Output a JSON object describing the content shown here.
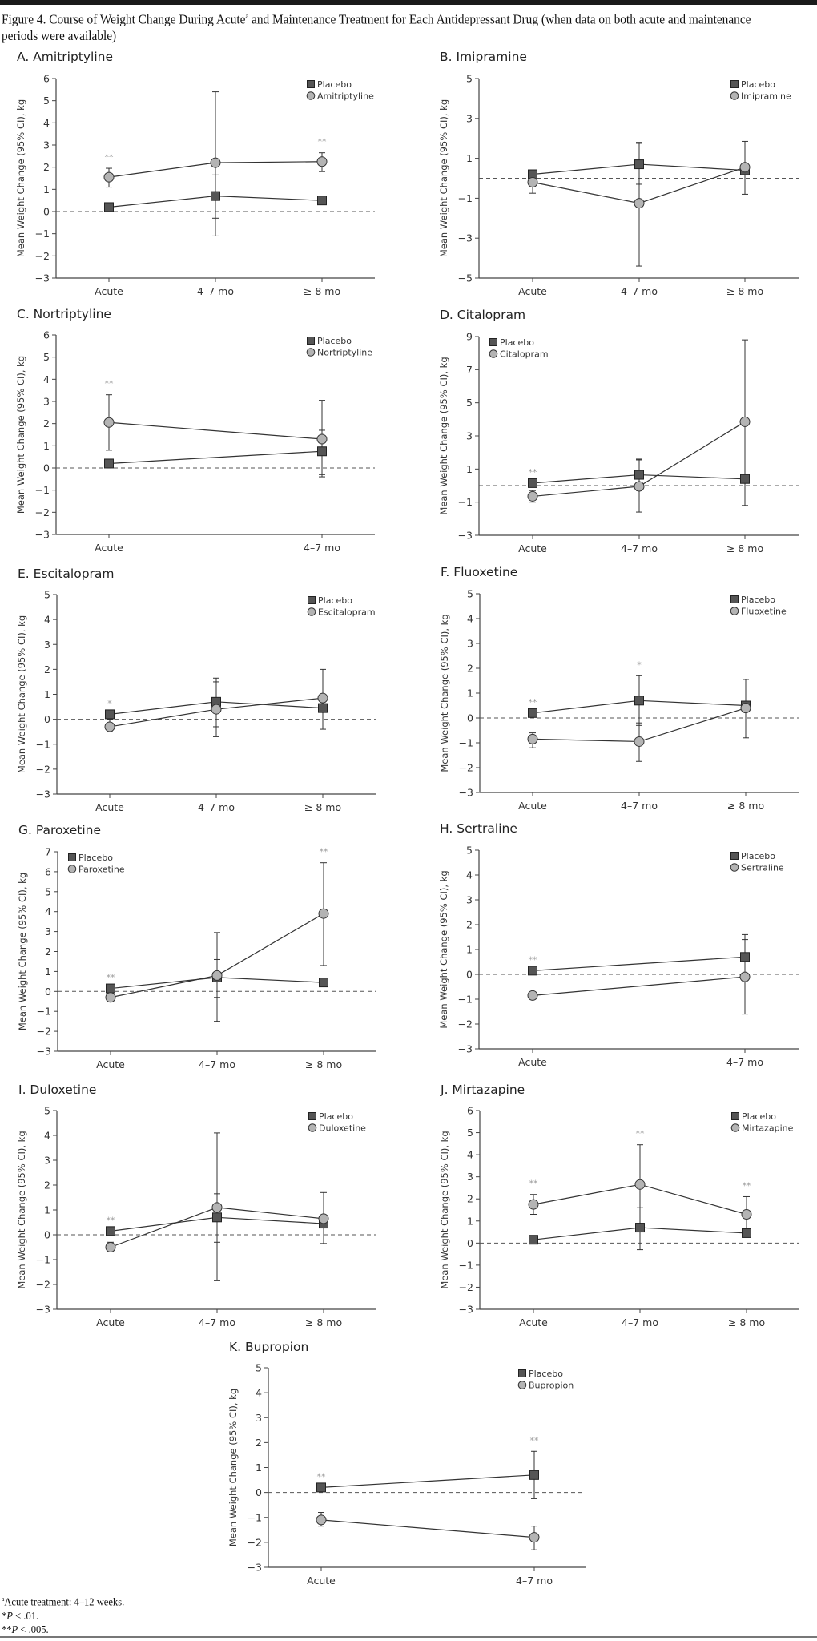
{
  "figure": {
    "title_prefix": "Figure 4. Course of Weight Change During Acute",
    "title_sup": "a",
    "title_suffix": " and Maintenance Treatment for Each Antidepressant Drug (when data on both acute and maintenance periods were available)",
    "footnotes": [
      {
        "sup": "a",
        "text": "Acute treatment: 4–12 weeks."
      },
      {
        "prefix": "*",
        "italic": "P",
        "text": " < .01."
      },
      {
        "prefix": "**",
        "italic": "P",
        "text": " < .005."
      }
    ]
  },
  "colors": {
    "placebo_fill": "#555555",
    "drug_fill": "#b4b4b4",
    "line": "#333333",
    "star": "#9a9a9a",
    "axis": "#444444"
  },
  "chart_data": [
    {
      "type": "line",
      "title": "A. Amitriptyline",
      "ylabel": "Mean Weight Change (95% CI), kg",
      "categories": [
        "Acute",
        "4–7 mo",
        "≥ 8 mo"
      ],
      "ylim": [
        -3,
        6
      ],
      "yticks": [
        6,
        5,
        4,
        3,
        2,
        1,
        0,
        -1,
        -2,
        -3
      ],
      "legend": "top-right",
      "reference_line": 0,
      "series": [
        {
          "name": "Placebo",
          "marker": "square",
          "values": [
            0.2,
            0.7,
            0.5
          ],
          "ci_low": [
            null,
            -0.3,
            null
          ],
          "ci_high": [
            null,
            1.65,
            null
          ]
        },
        {
          "name": "Amitriptyline",
          "marker": "circle",
          "values": [
            1.55,
            2.2,
            2.25
          ],
          "ci_low": [
            1.1,
            -1.1,
            1.8
          ],
          "ci_high": [
            1.95,
            5.4,
            2.65
          ]
        }
      ],
      "annotations": [
        "**",
        "",
        "**"
      ]
    },
    {
      "type": "line",
      "title": "B. Imipramine",
      "ylabel": "Mean Weight Change (95% CI), kg",
      "categories": [
        "Acute",
        "4–7 mo",
        "≥ 8 mo"
      ],
      "ylim": [
        -5,
        5
      ],
      "yticks": [
        5,
        3,
        1,
        -1,
        -3,
        -5
      ],
      "legend": "top-right",
      "reference_line": 0,
      "series": [
        {
          "name": "Placebo",
          "marker": "square",
          "values": [
            0.2,
            0.7,
            0.4
          ],
          "ci_low": [
            null,
            -0.3,
            null
          ],
          "ci_high": [
            null,
            1.75,
            null
          ]
        },
        {
          "name": "Imipramine",
          "marker": "circle",
          "values": [
            -0.2,
            -1.25,
            0.55
          ],
          "ci_low": [
            -0.75,
            -4.4,
            -0.8
          ],
          "ci_high": [
            null,
            1.8,
            1.85
          ]
        }
      ],
      "annotations": [
        "",
        "",
        ""
      ]
    },
    {
      "type": "line",
      "title": "C. Nortriptyline",
      "ylabel": "Mean Weight Change (95% CI), kg",
      "categories": [
        "Acute",
        "4–7 mo"
      ],
      "ylim": [
        -3,
        6
      ],
      "yticks": [
        6,
        5,
        4,
        3,
        2,
        1,
        0,
        -1,
        -2,
        -3
      ],
      "legend": "top-right",
      "reference_line": 0,
      "series": [
        {
          "name": "Placebo",
          "marker": "square",
          "values": [
            0.2,
            0.75
          ],
          "ci_low": [
            null,
            -0.3
          ],
          "ci_high": [
            null,
            1.7
          ]
        },
        {
          "name": "Nortriptyline",
          "marker": "circle",
          "values": [
            2.05,
            1.3
          ],
          "ci_low": [
            0.8,
            -0.4
          ],
          "ci_high": [
            3.3,
            3.05
          ]
        }
      ],
      "annotations": [
        "**",
        ""
      ]
    },
    {
      "type": "line",
      "title": "D. Citalopram",
      "ylabel": "Mean Weight Change (95% CI), kg",
      "categories": [
        "Acute",
        "4–7 mo",
        "≥ 8 mo"
      ],
      "ylim": [
        -3,
        9
      ],
      "yticks": [
        9,
        7,
        5,
        3,
        1,
        -1,
        -3
      ],
      "legend": "top-left",
      "reference_line": 0,
      "series": [
        {
          "name": "Placebo",
          "marker": "square",
          "values": [
            0.15,
            0.65,
            0.4
          ],
          "ci_low": [
            null,
            -0.3,
            null
          ],
          "ci_high": [
            null,
            1.6,
            null
          ]
        },
        {
          "name": "Citalopram",
          "marker": "circle",
          "values": [
            -0.65,
            -0.05,
            3.85
          ],
          "ci_low": [
            -1.0,
            -1.6,
            -1.2
          ],
          "ci_high": [
            -0.3,
            1.55,
            8.8
          ]
        }
      ],
      "annotations": [
        "**",
        "",
        ""
      ]
    },
    {
      "type": "line",
      "title": "E. Escitalopram",
      "ylabel": "Mean Weight Change (95% CI), kg",
      "categories": [
        "Acute",
        "4–7 mo",
        "≥ 8 mo"
      ],
      "ylim": [
        -3,
        5
      ],
      "yticks": [
        5,
        4,
        3,
        2,
        1,
        0,
        -1,
        -2,
        -3
      ],
      "legend": "top-right",
      "reference_line": 0,
      "series": [
        {
          "name": "Placebo",
          "marker": "square",
          "values": [
            0.2,
            0.7,
            0.45
          ],
          "ci_low": [
            null,
            -0.3,
            null
          ],
          "ci_high": [
            null,
            1.65,
            null
          ]
        },
        {
          "name": "Escitalopram",
          "marker": "circle",
          "values": [
            -0.3,
            0.4,
            0.85
          ],
          "ci_low": [
            -0.5,
            -0.7,
            -0.4
          ],
          "ci_high": [
            0.0,
            1.5,
            2.0
          ]
        }
      ],
      "annotations": [
        "*",
        "",
        ""
      ]
    },
    {
      "type": "line",
      "title": "F. Fluoxetine",
      "ylabel": "Mean Weight Change (95% CI), kg",
      "categories": [
        "Acute",
        "4–7 mo",
        "≥ 8 mo"
      ],
      "ylim": [
        -3,
        5
      ],
      "yticks": [
        5,
        4,
        3,
        2,
        1,
        0,
        -1,
        -2,
        -3
      ],
      "legend": "top-right",
      "reference_line": 0,
      "series": [
        {
          "name": "Placebo",
          "marker": "square",
          "values": [
            0.2,
            0.7,
            0.5
          ],
          "ci_low": [
            null,
            -0.3,
            null
          ],
          "ci_high": [
            null,
            1.7,
            null
          ]
        },
        {
          "name": "Fluoxetine",
          "marker": "circle",
          "values": [
            -0.85,
            -0.95,
            0.4
          ],
          "ci_low": [
            -1.2,
            -1.75,
            -0.8
          ],
          "ci_high": [
            -0.6,
            -0.2,
            1.55
          ]
        }
      ],
      "annotations": [
        "**",
        "*",
        ""
      ]
    },
    {
      "type": "line",
      "title": "G. Paroxetine",
      "ylabel": "Mean Weight Change (95% CI), kg",
      "categories": [
        "Acute",
        "4–7 mo",
        "≥ 8 mo"
      ],
      "ylim": [
        -3,
        7
      ],
      "yticks": [
        7,
        6,
        5,
        4,
        3,
        2,
        1,
        0,
        -1,
        -2,
        -3
      ],
      "legend": "top-left",
      "reference_line": 0,
      "series": [
        {
          "name": "Placebo",
          "marker": "square",
          "values": [
            0.15,
            0.7,
            0.45
          ],
          "ci_low": [
            null,
            -0.3,
            null
          ],
          "ci_high": [
            null,
            1.6,
            null
          ]
        },
        {
          "name": "Paroxetine",
          "marker": "circle",
          "values": [
            -0.3,
            0.8,
            3.9
          ],
          "ci_low": [
            null,
            -1.5,
            1.3
          ],
          "ci_high": [
            null,
            2.95,
            6.45
          ]
        }
      ],
      "annotations": [
        "**",
        "",
        "**"
      ]
    },
    {
      "type": "line",
      "title": "H. Sertraline",
      "ylabel": "Mean Weight Change (95% CI), kg",
      "categories": [
        "Acute",
        "4–7 mo"
      ],
      "ylim": [
        -3,
        5
      ],
      "yticks": [
        5,
        4,
        3,
        2,
        1,
        0,
        -1,
        -2,
        -3
      ],
      "legend": "top-right",
      "reference_line": 0,
      "series": [
        {
          "name": "Placebo",
          "marker": "square",
          "values": [
            0.15,
            0.7
          ],
          "ci_low": [
            null,
            null
          ],
          "ci_high": [
            null,
            1.6
          ]
        },
        {
          "name": "Sertraline",
          "marker": "circle",
          "values": [
            -0.85,
            -0.1
          ],
          "ci_low": [
            -1.0,
            -1.6
          ],
          "ci_high": [
            -0.75,
            1.4
          ]
        }
      ],
      "annotations": [
        "**",
        ""
      ]
    },
    {
      "type": "line",
      "title": "I. Duloxetine",
      "ylabel": "Mean Weight Change (95% CI), kg",
      "categories": [
        "Acute",
        "4–7 mo",
        "≥ 8 mo"
      ],
      "ylim": [
        -3,
        5
      ],
      "yticks": [
        5,
        4,
        3,
        2,
        1,
        0,
        -1,
        -2,
        -3
      ],
      "legend": "top-right",
      "reference_line": 0,
      "series": [
        {
          "name": "Placebo",
          "marker": "square",
          "values": [
            0.15,
            0.7,
            0.45
          ],
          "ci_low": [
            null,
            -0.3,
            null
          ],
          "ci_high": [
            null,
            1.65,
            null
          ]
        },
        {
          "name": "Duloxetine",
          "marker": "circle",
          "values": [
            -0.5,
            1.1,
            0.65
          ],
          "ci_low": [
            -0.65,
            -1.85,
            -0.35
          ],
          "ci_high": [
            -0.3,
            4.1,
            1.7
          ]
        }
      ],
      "annotations": [
        "**",
        "",
        ""
      ]
    },
    {
      "type": "line",
      "title": "J. Mirtazapine",
      "ylabel": "Mean Weight Change (95% CI), kg",
      "categories": [
        "Acute",
        "4–7 mo",
        "≥ 8 mo"
      ],
      "ylim": [
        -3,
        6
      ],
      "yticks": [
        6,
        5,
        4,
        3,
        2,
        1,
        0,
        -1,
        -2,
        -3
      ],
      "legend": "top-right",
      "reference_line": 0,
      "series": [
        {
          "name": "Placebo",
          "marker": "square",
          "values": [
            0.15,
            0.7,
            0.45
          ],
          "ci_low": [
            null,
            -0.3,
            null
          ],
          "ci_high": [
            null,
            1.6,
            null
          ]
        },
        {
          "name": "Mirtazapine",
          "marker": "circle",
          "values": [
            1.75,
            2.65,
            1.3
          ],
          "ci_low": [
            1.3,
            0.85,
            0.5
          ],
          "ci_high": [
            2.2,
            4.45,
            2.1
          ]
        }
      ],
      "annotations": [
        "**",
        "**",
        "**"
      ]
    },
    {
      "type": "line",
      "title": "K. Bupropion",
      "ylabel": "Mean Weight Change (95% CI), kg",
      "categories": [
        "Acute",
        "4–7 mo"
      ],
      "ylim": [
        -3,
        5
      ],
      "yticks": [
        5,
        4,
        3,
        2,
        1,
        0,
        -1,
        -2,
        -3
      ],
      "legend": "top-right",
      "reference_line": 0,
      "series": [
        {
          "name": "Placebo",
          "marker": "square",
          "values": [
            0.2,
            0.7
          ],
          "ci_low": [
            null,
            -0.25
          ],
          "ci_high": [
            null,
            1.65
          ]
        },
        {
          "name": "Bupropion",
          "marker": "circle",
          "values": [
            -1.1,
            -1.8
          ],
          "ci_low": [
            -1.35,
            -2.3
          ],
          "ci_high": [
            -0.8,
            -1.35
          ]
        }
      ],
      "annotations": [
        "**",
        "**"
      ]
    }
  ]
}
